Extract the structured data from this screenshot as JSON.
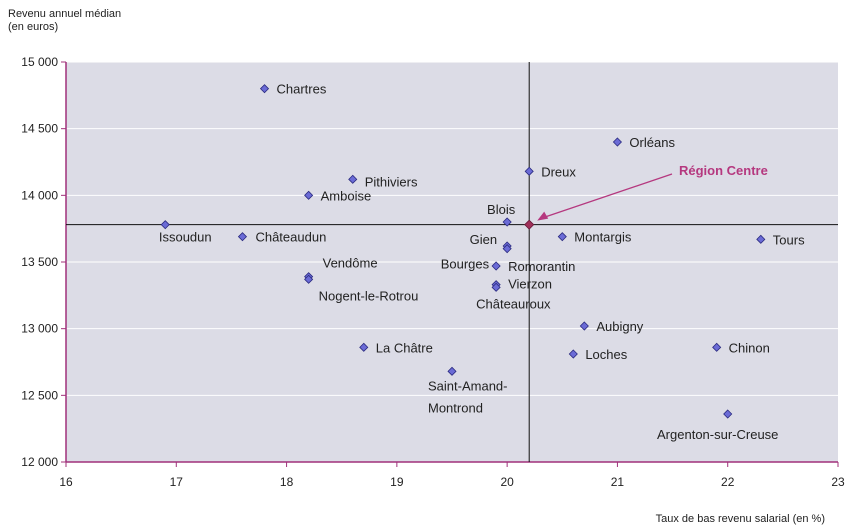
{
  "chart_data": {
    "type": "scatter",
    "ylabel_line1": "Revenu annuel médian",
    "ylabel_line2": "(en euros)",
    "xlabel": "Taux de bas revenu salarial (en %)",
    "xlim": [
      16,
      23
    ],
    "ylim": [
      12000,
      15000
    ],
    "x_ticks": [
      "16",
      "17",
      "18",
      "19",
      "20",
      "21",
      "22",
      "23"
    ],
    "y_ticks": [
      "12 000",
      "12 500",
      "13 000",
      "13 500",
      "14 000",
      "14 500",
      "15 000"
    ],
    "reference": {
      "x": 20.2,
      "y": 13780
    },
    "annotation": {
      "label": "Région Centre",
      "color": "#b5387f"
    },
    "colors": {
      "point": "#6b6bd6",
      "point_stroke": "#2b2b80",
      "plot_bg": "#dcdce6",
      "axis": "#a0307a",
      "highlight": "#a0305a"
    },
    "points": [
      {
        "label": "Chartres",
        "x": 17.8,
        "y": 14800
      },
      {
        "label": "Orléans",
        "x": 21.0,
        "y": 14400
      },
      {
        "label": "Dreux",
        "x": 20.2,
        "y": 14180
      },
      {
        "label": "Pithiviers",
        "x": 18.6,
        "y": 14120
      },
      {
        "label": "Amboise",
        "x": 18.2,
        "y": 14000
      },
      {
        "label": "Blois",
        "x": 20.0,
        "y": 13800
      },
      {
        "label": "Issoudun",
        "x": 16.9,
        "y": 13780
      },
      {
        "label": "Châteaudun",
        "x": 17.6,
        "y": 13690
      },
      {
        "label": "Montargis",
        "x": 20.5,
        "y": 13690
      },
      {
        "label": "Tours",
        "x": 22.3,
        "y": 13670
      },
      {
        "label": "Gien",
        "x": 20.0,
        "y": 13620
      },
      {
        "label": "Bourges",
        "x": 20.0,
        "y": 13600
      },
      {
        "label": "Romorantin",
        "x": 19.9,
        "y": 13470
      },
      {
        "label": "Vendôme",
        "x": 18.2,
        "y": 13390
      },
      {
        "label": "Nogent-le-Rotrou",
        "x": 18.2,
        "y": 13370
      },
      {
        "label": "Vierzon",
        "x": 19.9,
        "y": 13330
      },
      {
        "label": "Châteauroux",
        "x": 19.9,
        "y": 13310
      },
      {
        "label": "Aubigny",
        "x": 20.7,
        "y": 13020
      },
      {
        "label": "La Châtre",
        "x": 18.7,
        "y": 12860
      },
      {
        "label": "Chinon",
        "x": 21.9,
        "y": 12860
      },
      {
        "label": "Loches",
        "x": 20.6,
        "y": 12810
      },
      {
        "label": "Saint-Amand-",
        "x": 19.5,
        "y": 12680
      },
      {
        "label": "Argenton-sur-Creuse",
        "x": 22.0,
        "y": 12360
      }
    ],
    "extra_labels": [
      "Montrond"
    ]
  }
}
